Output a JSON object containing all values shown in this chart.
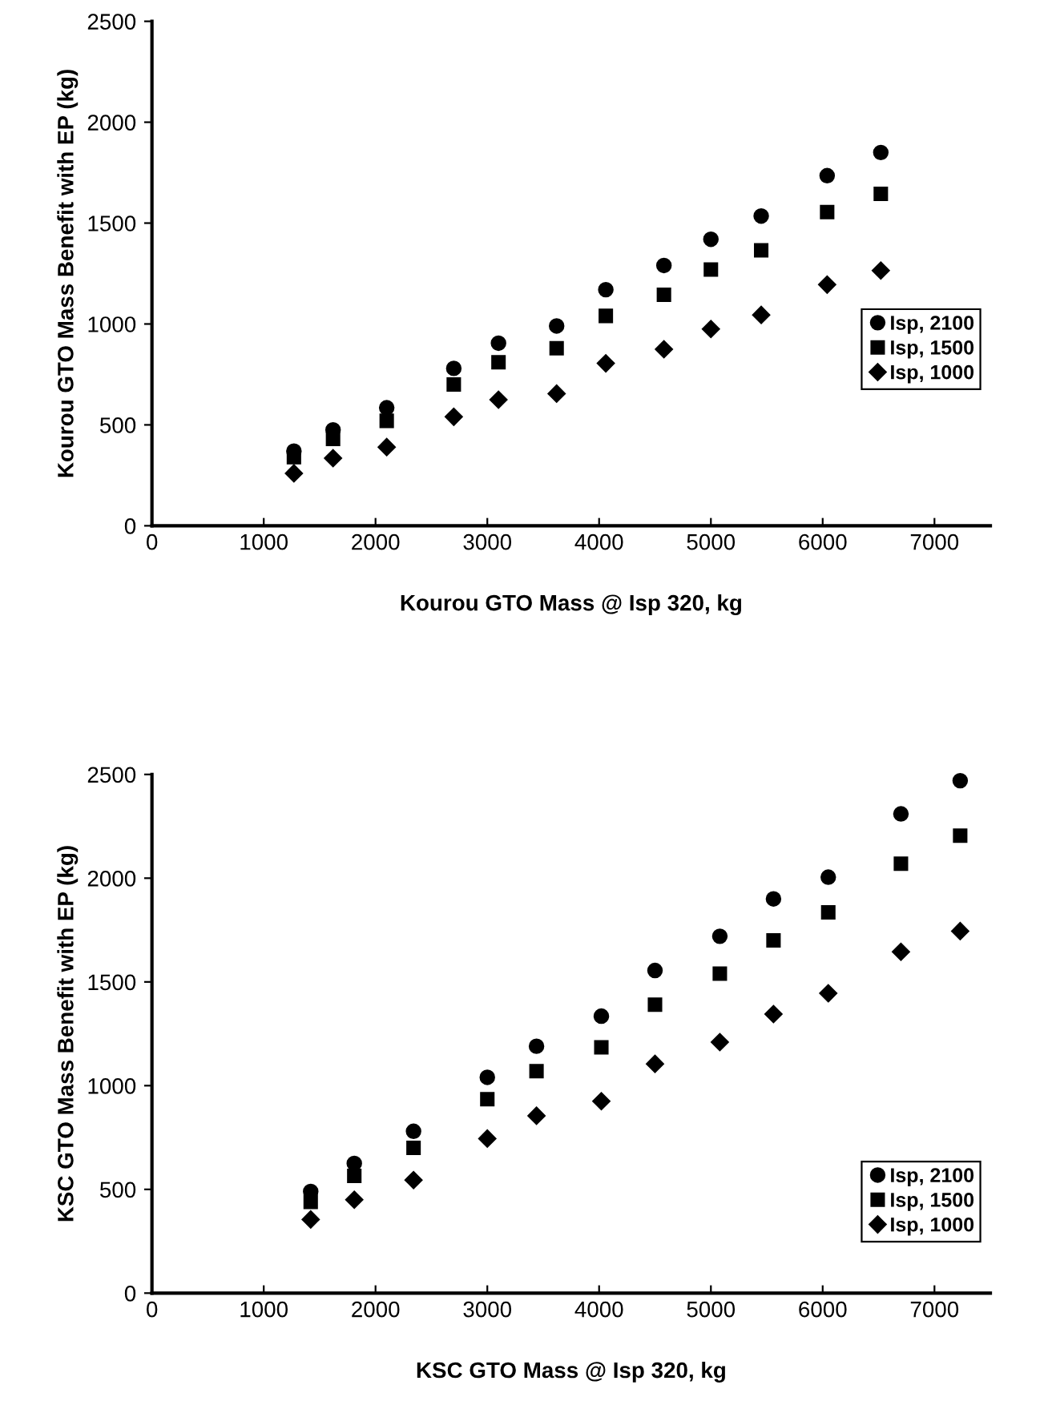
{
  "chart_data": [
    {
      "type": "scatter",
      "xlabel": "Kourou GTO Mass @ Isp 320, kg",
      "ylabel": "Kourou GTO Mass Benefit with EP (kg)",
      "x": [
        1270,
        1620,
        2100,
        2700,
        3100,
        3620,
        4060,
        4580,
        5000,
        5450,
        6040,
        6520
      ],
      "xlim": [
        0,
        7500
      ],
      "ylim": [
        0,
        2500
      ],
      "xticks": [
        0,
        1000,
        2000,
        3000,
        4000,
        5000,
        6000,
        7000
      ],
      "yticks": [
        0,
        500,
        1000,
        1500,
        2000,
        2500
      ],
      "grid": false,
      "legend": "right",
      "series": [
        {
          "name": "Isp, 2100",
          "color": "#000000",
          "marker": "circle",
          "values": [
            370,
            475,
            585,
            780,
            905,
            990,
            1170,
            1290,
            1420,
            1535,
            1735,
            1850
          ]
        },
        {
          "name": "Isp, 1500",
          "color": "#000000",
          "marker": "square",
          "values": [
            340,
            430,
            520,
            700,
            810,
            880,
            1040,
            1145,
            1270,
            1365,
            1555,
            1645
          ]
        },
        {
          "name": "Isp, 1000",
          "color": "#000000",
          "marker": "diamond",
          "values": [
            260,
            335,
            390,
            540,
            625,
            655,
            805,
            875,
            975,
            1045,
            1195,
            1265
          ]
        }
      ]
    },
    {
      "type": "scatter",
      "xlabel": "KSC GTO Mass @ Isp 320, kg",
      "ylabel": "KSC GTO Mass Benefit with EP (kg)",
      "x": [
        1420,
        1810,
        2340,
        3000,
        3440,
        4020,
        4500,
        5080,
        5560,
        6050,
        6700,
        7230
      ],
      "xlim": [
        0,
        7500
      ],
      "ylim": [
        0,
        2500
      ],
      "xticks": [
        0,
        1000,
        2000,
        3000,
        4000,
        5000,
        6000,
        7000
      ],
      "yticks": [
        0,
        500,
        1000,
        1500,
        2000,
        2500
      ],
      "grid": false,
      "legend": "lower right",
      "series": [
        {
          "name": "Isp, 2100",
          "color": "#000000",
          "marker": "circle",
          "values": [
            490,
            625,
            780,
            1040,
            1190,
            1335,
            1555,
            1720,
            1900,
            2005,
            2310,
            2470
          ]
        },
        {
          "name": "Isp, 1500",
          "color": "#000000",
          "marker": "square",
          "values": [
            440,
            565,
            700,
            935,
            1070,
            1185,
            1390,
            1540,
            1700,
            1835,
            2070,
            2205
          ]
        },
        {
          "name": "Isp, 1000",
          "color": "#000000",
          "marker": "diamond",
          "values": [
            355,
            450,
            545,
            745,
            855,
            925,
            1105,
            1210,
            1345,
            1445,
            1645,
            1745
          ]
        }
      ]
    }
  ]
}
